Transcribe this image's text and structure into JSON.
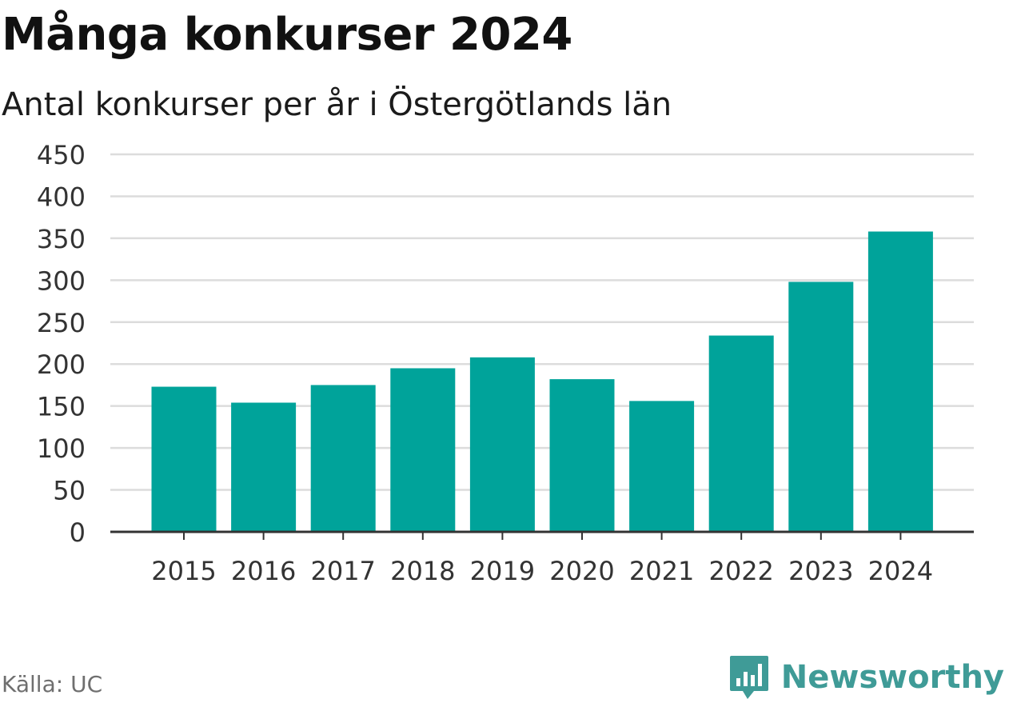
{
  "header": {
    "title": "Många konkurser 2024",
    "subtitle": "Antal konkurser per år i Östergötlands län"
  },
  "footer": {
    "source": "Källa: UC",
    "brand": "Newsworthy"
  },
  "colors": {
    "bar": "#00a39a",
    "grid": "#dcdcdc",
    "axis": "#333333",
    "brand": "#3f9b97"
  },
  "chart_data": {
    "type": "bar",
    "categories": [
      "2015",
      "2016",
      "2017",
      "2018",
      "2019",
      "2020",
      "2021",
      "2022",
      "2023",
      "2024"
    ],
    "values": [
      173,
      154,
      175,
      195,
      208,
      182,
      156,
      234,
      298,
      358
    ],
    "ylim": [
      0,
      450
    ],
    "yticks": [
      0,
      50,
      100,
      150,
      200,
      250,
      300,
      350,
      400,
      450
    ],
    "title": "Många konkurser 2024",
    "subtitle": "Antal konkurser per år i Östergötlands län",
    "xlabel": "",
    "ylabel": "",
    "grid": true,
    "legend": "none"
  }
}
